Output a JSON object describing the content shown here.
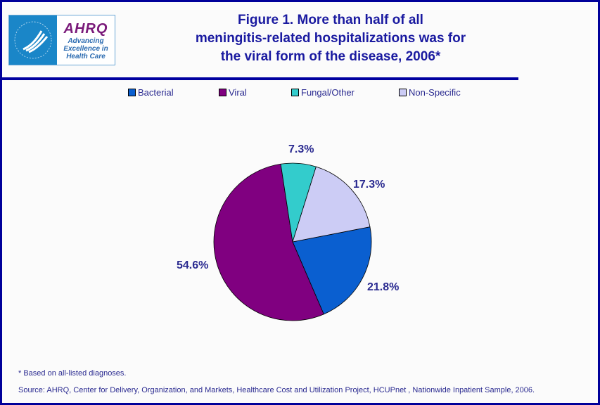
{
  "logo": {
    "text": "AHRQ",
    "tagline": "Advancing Excellence in Health Care",
    "seal_text": "DEPARTMENT OF HEALTH & HUMAN SERVICES USA"
  },
  "chart_data": {
    "type": "pie",
    "title": "Figure 1.  More than half of all meningitis-related hospitalizations was for the viral form of the disease, 2006*",
    "title_lines": [
      "Figure 1.  More than half of all",
      "meningitis-related hospitalizations was for",
      "the viral form of the disease, 2006*"
    ],
    "legend_position": "top",
    "slices": [
      {
        "name": "Bacterial",
        "value": 21.8,
        "label": "21.8%",
        "color": "#0a5fd0"
      },
      {
        "name": "Viral",
        "value": 54.6,
        "label": "54.6%",
        "color": "#800080"
      },
      {
        "name": "Fungal/Other",
        "value": 7.3,
        "label": "7.3%",
        "color": "#33cccc"
      },
      {
        "name": "Non-Specific",
        "value": 17.3,
        "label": "17.3%",
        "color": "#ccccf5"
      }
    ]
  },
  "footnote": "* Based on all-listed diagnoses.",
  "source": "Source: AHRQ, Center for Delivery, Organization, and Markets, Healthcare Cost and Utilization Project, HCUPnet , Nationwide Inpatient Sample, 2006."
}
